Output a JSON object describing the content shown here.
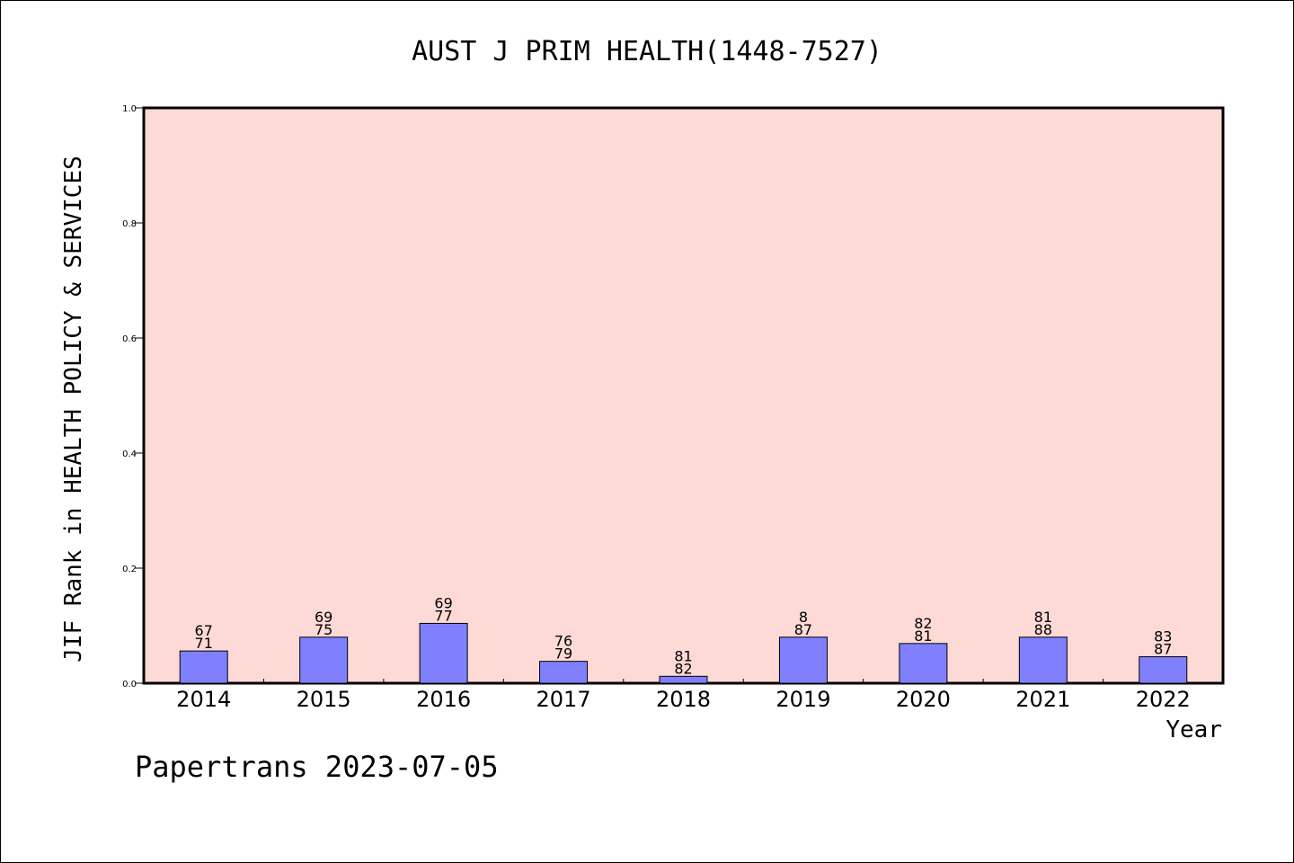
{
  "chart_data": {
    "type": "bar",
    "title": "AUST J PRIM HEALTH(1448-7527)",
    "xlabel": "Year",
    "ylabel": "JIF Rank in HEALTH POLICY & SERVICES",
    "ylim": [
      0,
      1.0
    ],
    "yticks": [
      "0.0",
      "0.2",
      "0.4",
      "0.6",
      "0.8",
      "1.0"
    ],
    "categories": [
      "2014",
      "2015",
      "2016",
      "2017",
      "2018",
      "2019",
      "2020",
      "2021",
      "2022"
    ],
    "values": [
      0.056,
      0.08,
      0.104,
      0.038,
      0.012,
      0.08,
      0.069,
      0.08,
      0.046
    ],
    "labels_top": [
      "67",
      "69",
      "69",
      "76",
      "81",
      "8",
      "82",
      "81",
      "83"
    ],
    "labels_bottom": [
      "71",
      "75",
      "77",
      "79",
      "82",
      "87",
      "81",
      "88",
      "87"
    ],
    "grid": false,
    "colors": {
      "plot_background": "#fddad6",
      "bar_fill": "#8080ff",
      "bar_stroke": "#000000"
    }
  },
  "footer": "Papertrans 2023-07-05"
}
